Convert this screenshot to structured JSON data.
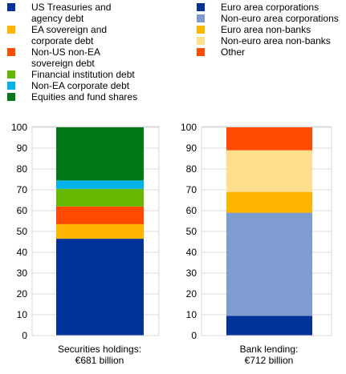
{
  "chart_data": [
    {
      "type": "bar",
      "stacked": true,
      "ylim": [
        0,
        100
      ],
      "yticks": [
        0,
        10,
        20,
        30,
        40,
        50,
        60,
        70,
        80,
        90,
        100
      ],
      "grid": true,
      "categories": [
        "Securities holdings:",
        "€681 billion"
      ],
      "category_label_lines": [
        "Securities holdings:",
        "€681 billion"
      ],
      "series": [
        {
          "name": "US Treasuries and agency debt",
          "name_lines": [
            "US Treasuries and",
            "agency debt"
          ],
          "color": "#003299",
          "value": 46.5
        },
        {
          "name": "EA sovereign and corporate debt",
          "name_lines": [
            "EA sovereign and",
            "corporate debt"
          ],
          "color": "#ffb400",
          "value": 7
        },
        {
          "name": "Non-US non-EA sovereign debt",
          "name_lines": [
            "Non-US non-EA",
            "sovereign debt"
          ],
          "color": "#ff4b00",
          "value": 8.5
        },
        {
          "name": "Financial institution debt",
          "name_lines": [
            "Financial institution debt"
          ],
          "color": "#65b800",
          "value": 8.5
        },
        {
          "name": "Non-EA corporate debt",
          "name_lines": [
            "Non-EA corporate debt"
          ],
          "color": "#00b1ea",
          "value": 4
        },
        {
          "name": "Equities and fund shares",
          "name_lines": [
            "Equities and fund shares"
          ],
          "color": "#007816",
          "value": 25.5
        }
      ]
    },
    {
      "type": "bar",
      "stacked": true,
      "ylim": [
        0,
        100
      ],
      "yticks": [
        0,
        10,
        20,
        30,
        40,
        50,
        60,
        70,
        80,
        90,
        100
      ],
      "grid": true,
      "categories": [
        "Bank lending:",
        "€712 billion"
      ],
      "category_label_lines": [
        "Bank lending:",
        "€712 billion"
      ],
      "series": [
        {
          "name": "Euro area corporations",
          "name_lines": [
            "Euro area corporations"
          ],
          "color": "#003299",
          "value": 9.5
        },
        {
          "name": "Non-euro area corporations",
          "name_lines": [
            "Non-euro area corporations"
          ],
          "color": "#7e9ccf",
          "value": 49.5
        },
        {
          "name": "Euro area non-banks",
          "name_lines": [
            "Euro area non-banks"
          ],
          "color": "#ffb400",
          "value": 10
        },
        {
          "name": "Non-euro area non-banks",
          "name_lines": [
            "Non-euro area non-banks"
          ],
          "color": "#ffde8d",
          "value": 20
        },
        {
          "name": "Other",
          "name_lines": [
            "Other"
          ],
          "color": "#ff4b00",
          "value": 11
        }
      ]
    }
  ]
}
